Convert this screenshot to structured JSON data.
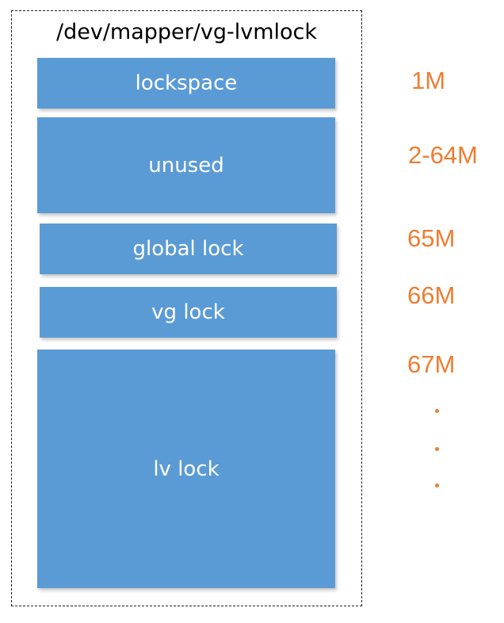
{
  "container": {
    "title": "/dev/mapper/vg-lvmlock"
  },
  "blocks": [
    {
      "label": "lockspace"
    },
    {
      "label": "unused"
    },
    {
      "label": "global lock"
    },
    {
      "label": "vg lock"
    },
    {
      "label": "lv lock"
    }
  ],
  "offsets": [
    {
      "label": "1M"
    },
    {
      "label": "2-64M"
    },
    {
      "label": "65M"
    },
    {
      "label": "66M"
    },
    {
      "label": "67M"
    }
  ],
  "continuation": ".",
  "colors": {
    "block_fill": "#5b9bd5",
    "block_text": "#ffffff",
    "offset_text": "#ed7d31",
    "border": "#222222"
  }
}
